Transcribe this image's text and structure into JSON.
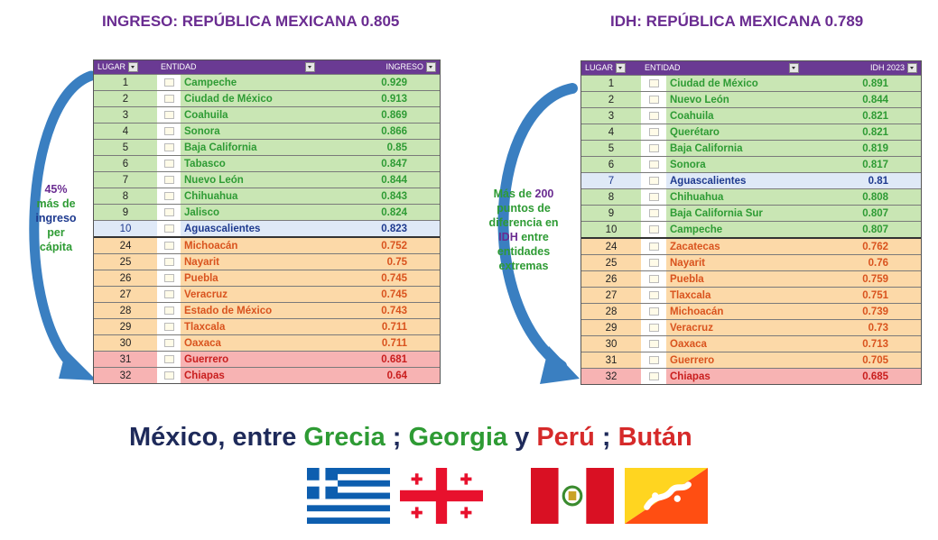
{
  "left": {
    "title": "INGRESO: REPÚBLICA MEXICANA 0.805",
    "headers": {
      "lugar": "LUGAR",
      "entidad": "ENTIDAD",
      "valor": "INGRESO"
    },
    "rows": [
      {
        "rank": "1",
        "entity": "Campeche",
        "value": "0.929",
        "group": "top"
      },
      {
        "rank": "2",
        "entity": "Ciudad de México",
        "value": "0.913",
        "group": "top"
      },
      {
        "rank": "3",
        "entity": "Coahuila",
        "value": "0.869",
        "group": "top"
      },
      {
        "rank": "4",
        "entity": "Sonora",
        "value": "0.866",
        "group": "top"
      },
      {
        "rank": "5",
        "entity": "Baja California",
        "value": "0.85",
        "group": "top"
      },
      {
        "rank": "6",
        "entity": "Tabasco",
        "value": "0.847",
        "group": "top"
      },
      {
        "rank": "7",
        "entity": "Nuevo León",
        "value": "0.844",
        "group": "top"
      },
      {
        "rank": "8",
        "entity": "Chihuahua",
        "value": "0.843",
        "group": "top"
      },
      {
        "rank": "9",
        "entity": "Jalisco",
        "value": "0.824",
        "group": "top"
      },
      {
        "rank": "10",
        "entity": "Aguascalientes",
        "value": "0.823",
        "group": "highlight"
      },
      {
        "rank": "24",
        "entity": "Michoacán",
        "value": "0.752",
        "group": "bottom"
      },
      {
        "rank": "25",
        "entity": "Nayarit",
        "value": "0.75",
        "group": "bottom"
      },
      {
        "rank": "26",
        "entity": "Puebla",
        "value": "0.745",
        "group": "bottom"
      },
      {
        "rank": "27",
        "entity": "Veracruz",
        "value": "0.745",
        "group": "bottom"
      },
      {
        "rank": "28",
        "entity": "Estado de México",
        "value": "0.743",
        "group": "bottom"
      },
      {
        "rank": "29",
        "entity": "Tlaxcala",
        "value": "0.711",
        "group": "bottom"
      },
      {
        "rank": "30",
        "entity": "Oaxaca",
        "value": "0.711",
        "group": "bottom"
      },
      {
        "rank": "31",
        "entity": "Guerrero",
        "value": "0.681",
        "group": "worst"
      },
      {
        "rank": "32",
        "entity": "Chiapas",
        "value": "0.64",
        "group": "worst"
      }
    ],
    "note": {
      "l1": "45%",
      "l2": "más de",
      "l3": "ingreso",
      "l4": "per",
      "l5": "cápita"
    }
  },
  "right": {
    "title": "IDH: REPÚBLICA MEXICANA 0.789",
    "headers": {
      "lugar": "LUGAR",
      "entidad": "ENTIDAD",
      "valor": "IDH 2023"
    },
    "rows": [
      {
        "rank": "1",
        "entity": "Ciudad de México",
        "value": "0.891",
        "group": "top"
      },
      {
        "rank": "2",
        "entity": "Nuevo León",
        "value": "0.844",
        "group": "top"
      },
      {
        "rank": "3",
        "entity": "Coahuila",
        "value": "0.821",
        "group": "top"
      },
      {
        "rank": "4",
        "entity": "Querétaro",
        "value": "0.821",
        "group": "top"
      },
      {
        "rank": "5",
        "entity": "Baja California",
        "value": "0.819",
        "group": "top"
      },
      {
        "rank": "6",
        "entity": "Sonora",
        "value": "0.817",
        "group": "top"
      },
      {
        "rank": "7",
        "entity": "Aguascalientes",
        "value": "0.81",
        "group": "highlight"
      },
      {
        "rank": "8",
        "entity": "Chihuahua",
        "value": "0.808",
        "group": "top"
      },
      {
        "rank": "9",
        "entity": "Baja California Sur",
        "value": "0.807",
        "group": "top"
      },
      {
        "rank": "10",
        "entity": "Campeche",
        "value": "0.807",
        "group": "top"
      },
      {
        "rank": "24",
        "entity": "Zacatecas",
        "value": "0.762",
        "group": "bottom"
      },
      {
        "rank": "25",
        "entity": "Nayarit",
        "value": "0.76",
        "group": "bottom"
      },
      {
        "rank": "26",
        "entity": "Puebla",
        "value": "0.759",
        "group": "bottom"
      },
      {
        "rank": "27",
        "entity": "Tlaxcala",
        "value": "0.751",
        "group": "bottom"
      },
      {
        "rank": "28",
        "entity": "Michoacán",
        "value": "0.739",
        "group": "bottom"
      },
      {
        "rank": "29",
        "entity": "Veracruz",
        "value": "0.73",
        "group": "bottom"
      },
      {
        "rank": "30",
        "entity": "Oaxaca",
        "value": "0.713",
        "group": "bottom"
      },
      {
        "rank": "31",
        "entity": "Guerrero",
        "value": "0.705",
        "group": "bottom"
      },
      {
        "rank": "32",
        "entity": "Chiapas",
        "value": "0.685",
        "group": "worst"
      }
    ],
    "note": {
      "l1a": "Más de ",
      "l1b": "200",
      "l2": "puntos de",
      "l3": "diferencia en",
      "l4a": "IDH",
      "l4b": " entre",
      "l5": "entidades",
      "l6": "extremas"
    }
  },
  "bottom": {
    "part1": "México, entre ",
    "grecia": "Grecia",
    "sep1": " ; ",
    "georgia": "Georgia",
    "y": " y ",
    "peru": "Perú",
    "sep2": " ; ",
    "butan": "Bután"
  },
  "colors": {
    "title": "#6a2c91",
    "green": "#2e9b34",
    "orange": "#d9531e",
    "red": "#c91e1e",
    "blue": "#1e3a8f",
    "arrow": "#3a7fc1"
  },
  "flags": [
    "greece-flag",
    "georgia-flag",
    "peru-flag",
    "bhutan-flag"
  ]
}
